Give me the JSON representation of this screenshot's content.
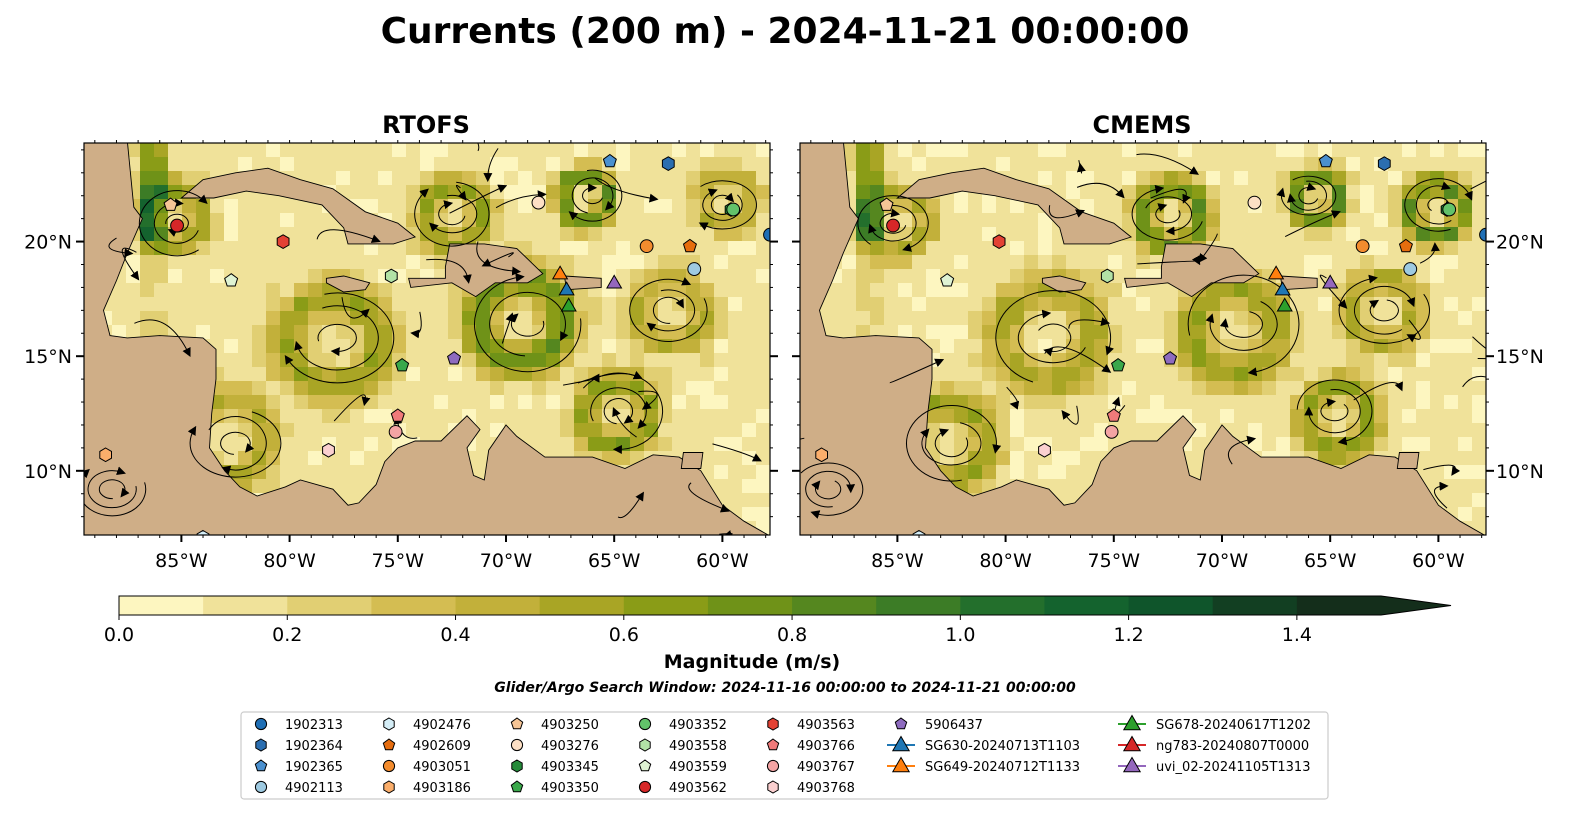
{
  "title": "Currents (200 m) - 2024-11-21 00:00:00",
  "panels": [
    {
      "name": "RTOFS",
      "seed": 11
    },
    {
      "name": "CMEMS",
      "seed": 37
    }
  ],
  "map": {
    "lon_range": [
      -89.5,
      -57.8
    ],
    "lat_range": [
      7.2,
      24.3
    ],
    "lon_ticks": [
      -85,
      -80,
      -75,
      -70,
      -65,
      -60
    ],
    "lon_tick_labels": [
      "85°W",
      "80°W",
      "75°W",
      "70°W",
      "65°W",
      "60°W"
    ],
    "lat_ticks": [
      10,
      15,
      20
    ],
    "lat_tick_labels": [
      "10°N",
      "15°N",
      "20°N"
    ],
    "colors": {
      "land": "#cfae87",
      "ocean": "#99b7e0",
      "coast": "#000000"
    }
  },
  "colorbar": {
    "label": "Magnitude (m/s)",
    "vmin": 0.0,
    "vmax": 1.5,
    "ticks": [
      0.0,
      0.2,
      0.4,
      0.6,
      0.8,
      1.0,
      1.2,
      1.4
    ],
    "tick_labels": [
      "0.0",
      "0.2",
      "0.4",
      "0.6",
      "0.8",
      "1.0",
      "1.2",
      "1.4"
    ],
    "extend": "max",
    "colors": [
      "#fdf6c0",
      "#f0e29a",
      "#e1cf73",
      "#d4bd52",
      "#c2b03a",
      "#a9a525",
      "#8a9c17",
      "#6f9218",
      "#55871f",
      "#3c7c26",
      "#236f2c",
      "#14632e",
      "#0f552b",
      "#123f22",
      "#142e1b"
    ]
  },
  "search_window": "Glider/Argo Search Window: 2024-11-16 00:00:00 to 2024-11-21 00:00:00",
  "platforms": [
    {
      "id": "1902313",
      "marker": "circle",
      "color": "#1f6fb5",
      "lon": -57.8,
      "lat": 20.3
    },
    {
      "id": "1902364",
      "marker": "hexagon",
      "color": "#2b6eb0",
      "lon": -62.5,
      "lat": 23.4
    },
    {
      "id": "1902365",
      "marker": "pentagon",
      "color": "#4a90cf",
      "lon": -65.2,
      "lat": 23.5
    },
    {
      "id": "4902113",
      "marker": "circle",
      "color": "#9ecae1",
      "lon": -61.3,
      "lat": 18.8
    },
    {
      "id": "4902476",
      "marker": "hexagon",
      "color": "#d5eef7",
      "lon": -84.0,
      "lat": 7.1
    },
    {
      "id": "4902609",
      "marker": "pentagon",
      "color": "#e66d0e",
      "lon": -61.5,
      "lat": 19.8
    },
    {
      "id": "4903051",
      "marker": "circle",
      "color": "#f38c2e",
      "lon": -63.5,
      "lat": 19.8
    },
    {
      "id": "4903186",
      "marker": "hexagon",
      "color": "#fbae6b",
      "lon": -88.5,
      "lat": 10.7
    },
    {
      "id": "4903250",
      "marker": "pentagon",
      "color": "#f6c596",
      "lon": -85.5,
      "lat": 21.6
    },
    {
      "id": "4903276",
      "marker": "circle",
      "color": "#fde0c5",
      "lon": -68.5,
      "lat": 21.7
    },
    {
      "id": "4903345",
      "marker": "hexagon",
      "color": "#258a3a",
      "lon": -59.6,
      "lat": 21.4
    },
    {
      "id": "4903350",
      "marker": "pentagon",
      "color": "#3aa84b",
      "lon": -74.8,
      "lat": 14.6
    },
    {
      "id": "4903352",
      "marker": "circle",
      "color": "#62c26a",
      "lon": -59.5,
      "lat": 21.4
    },
    {
      "id": "4903558",
      "marker": "hexagon",
      "color": "#b2e2a6",
      "lon": -75.3,
      "lat": 18.5
    },
    {
      "id": "4903559",
      "marker": "pentagon",
      "color": "#dff3d3",
      "lon": -82.7,
      "lat": 18.3
    },
    {
      "id": "4903562",
      "marker": "circle",
      "color": "#d62728",
      "lon": -85.2,
      "lat": 20.7
    },
    {
      "id": "4903563",
      "marker": "hexagon",
      "color": "#e34234",
      "lon": -80.3,
      "lat": 20.0
    },
    {
      "id": "4903766",
      "marker": "pentagon",
      "color": "#f07a7a",
      "lon": -75.0,
      "lat": 12.4
    },
    {
      "id": "4903767",
      "marker": "circle",
      "color": "#f4a4a4",
      "lon": -75.1,
      "lat": 11.7
    },
    {
      "id": "4903768",
      "marker": "hexagon",
      "color": "#fbd0d0",
      "lon": -78.2,
      "lat": 10.9
    },
    {
      "id": "5906437",
      "marker": "pentagon",
      "color": "#8e6bbf",
      "lon": -72.4,
      "lat": 14.9
    },
    {
      "id": "SG630-20240713T1103",
      "marker": "triangle",
      "color": "#1f77b4",
      "lon": -67.2,
      "lat": 17.9
    },
    {
      "id": "SG649-20240712T1133",
      "marker": "triangle",
      "color": "#ff7f0e",
      "lon": -67.5,
      "lat": 18.6
    },
    {
      "id": "SG678-20240617T1202",
      "marker": "triangle",
      "color": "#2ca02c",
      "lon": -67.1,
      "lat": 17.2
    },
    {
      "id": "ng783-20240807T0000",
      "marker": "triangle",
      "color": "#d62728",
      "lon": null,
      "lat": null
    },
    {
      "id": "uvi_02-20241105T1313",
      "marker": "triangle",
      "color": "#9467bd",
      "lon": -65.0,
      "lat": 18.2
    }
  ]
}
